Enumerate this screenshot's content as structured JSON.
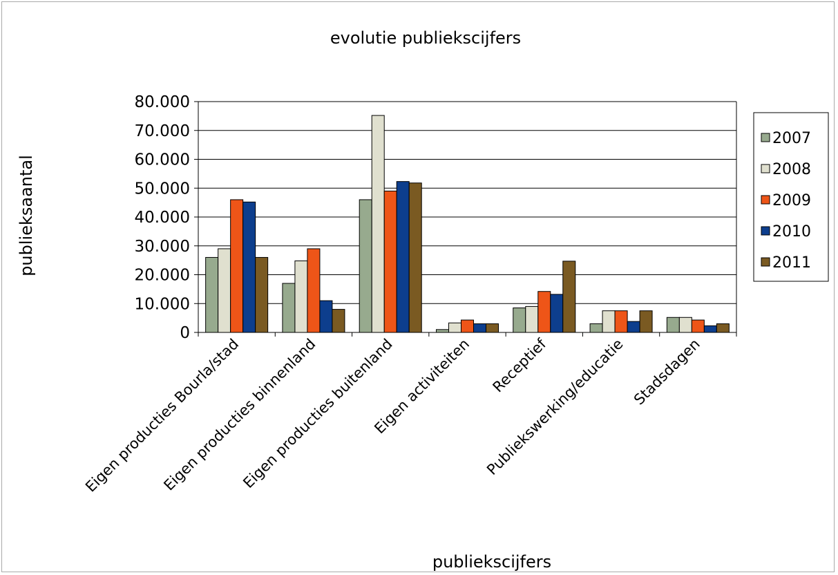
{
  "chart_data": {
    "type": "bar",
    "title": "evolutie publiekscijfers",
    "xlabel": "publiekscijfers",
    "ylabel": "publieksaantal",
    "ylim": [
      0,
      80000
    ],
    "yticks": [
      "0",
      "10.000",
      "20.000",
      "30.000",
      "40.000",
      "50.000",
      "60.000",
      "70.000",
      "80.000"
    ],
    "categories": [
      "Eigen producties Bourla/stad",
      "Eigen producties binnenland",
      "Eigen producties buitenland",
      "Eigen activiteiten",
      "Receptief",
      "Publiekswerking/educatie",
      "Stadsdagen"
    ],
    "series": [
      {
        "name": "2007",
        "color": "#97aa8e",
        "values": [
          26000,
          17000,
          46000,
          1000,
          8500,
          3000,
          5200
        ]
      },
      {
        "name": "2008",
        "color": "#e0e0cf",
        "values": [
          29000,
          24800,
          75200,
          3300,
          9000,
          7500,
          5200
        ]
      },
      {
        "name": "2009",
        "color": "#ee5518",
        "values": [
          46000,
          29000,
          49000,
          4300,
          14200,
          7500,
          4300
        ]
      },
      {
        "name": "2010",
        "color": "#0d3e8d",
        "values": [
          45200,
          11000,
          52300,
          3000,
          13200,
          3800,
          2300
        ]
      },
      {
        "name": "2011",
        "color": "#7a5a22",
        "values": [
          26000,
          8000,
          51800,
          3000,
          24700,
          7500,
          3000
        ]
      }
    ],
    "legend": "right",
    "grid": true
  }
}
